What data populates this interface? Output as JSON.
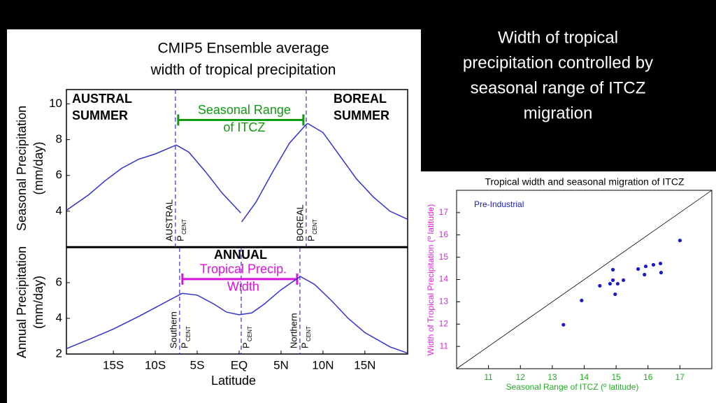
{
  "slide_title": [
    "Width of tropical",
    "precipitation controlled by",
    "seasonal range of ITCZ",
    "migration"
  ],
  "chart_data": [
    {
      "type": "line",
      "title": [
        "CMIP5 Ensemble average",
        "width of tropical precipitation"
      ],
      "ylabel": [
        "Seasonal Precipitation",
        "(mm/day)"
      ],
      "corner_labels": [
        [
          "AUSTRAL",
          "SUMMER"
        ],
        [
          "BOREAL",
          "SUMMER"
        ]
      ],
      "x": [
        -20.6,
        -18,
        -16,
        -14,
        -12,
        -10,
        -8,
        -7.5,
        -6,
        -4,
        -2,
        0.2,
        0.25,
        0.3,
        2,
        4,
        6,
        8,
        8.2,
        10,
        12,
        14,
        16,
        18,
        20.1
      ],
      "series": [
        {
          "color": "#3333cc",
          "values": [
            4.05,
            4.9,
            5.7,
            6.4,
            6.9,
            7.2,
            7.6,
            7.7,
            7.3,
            6.2,
            5.0,
            3.9,
            null,
            3.4,
            4.5,
            6.2,
            7.8,
            8.85,
            8.9,
            8.4,
            7.1,
            5.8,
            4.8,
            4.0,
            3.55
          ]
        }
      ],
      "xlim": [
        -20.6,
        20.1
      ],
      "ylim": [
        2,
        10.8
      ],
      "yticks": [
        4,
        6,
        8,
        10
      ],
      "pcent_lines": [
        {
          "x": -7.6,
          "label": "AUSTRAL",
          "symbol": "P",
          "subscript": "CENT"
        },
        {
          "x": 8.0,
          "label": "BOREAL",
          "symbol": "P",
          "subscript": "CENT"
        }
      ],
      "range_bar": {
        "y": 9.1,
        "label": [
          "Seasonal Range",
          "of ITCZ"
        ],
        "color": "#109a10"
      }
    },
    {
      "type": "line",
      "panel_label": "ANNUAL",
      "ylabel": [
        "Annual Precipitation",
        "(mm/day)"
      ],
      "xlabel": "Latitude",
      "x": [
        -20.6,
        -18,
        -15,
        -12,
        -10,
        -8,
        -6.8,
        -5,
        -3,
        -1.5,
        0,
        1.5,
        3,
        5,
        7.3,
        9,
        11,
        13,
        15,
        18,
        20.1
      ],
      "series": [
        {
          "color": "#3333cc",
          "values": [
            2.3,
            2.8,
            3.4,
            4.1,
            4.6,
            5.1,
            5.4,
            5.3,
            4.8,
            4.35,
            4.2,
            4.3,
            4.8,
            5.6,
            6.35,
            5.9,
            5.0,
            4.0,
            3.2,
            2.4,
            2.05
          ]
        }
      ],
      "xlim": [
        -20.6,
        20.1
      ],
      "ylim": [
        2,
        7.96
      ],
      "yticks": [
        2,
        4,
        6
      ],
      "xticks": [
        {
          "value": -15,
          "label": "15S"
        },
        {
          "value": -10,
          "label": "10S"
        },
        {
          "value": -5,
          "label": "5S"
        },
        {
          "value": 0,
          "label": "EQ"
        },
        {
          "value": 5,
          "label": "5N"
        },
        {
          "value": 10,
          "label": "10N"
        },
        {
          "value": 15,
          "label": "15N"
        }
      ],
      "pcent_lines": [
        {
          "x": -7.1,
          "label": "Southern",
          "symbol": "P",
          "subscript": "CENT"
        },
        {
          "x": 0.25,
          "symbol": "P",
          "subscript": "CENT"
        },
        {
          "x": 7.25,
          "label": "Northern",
          "symbol": "P",
          "subscript": "CENT"
        }
      ],
      "range_bar": {
        "y": 6.2,
        "label": [
          "Tropical Precip.",
          "Width"
        ],
        "color": "#dd11dd"
      }
    },
    {
      "type": "scatter",
      "title": "Tropical width and seasonal migration of ITCZ",
      "xlabel": "Seasonal Range of ITCZ (º latitude)",
      "ylabel": "Width of Tropical Precipitation (º latitude)",
      "xlabel_color": "#22aa22",
      "ylabel_color": "#dd22dd",
      "x": [
        13.35,
        13.92,
        14.49,
        14.81,
        14.9,
        14.9,
        14.97,
        15.05,
        15.23,
        15.69,
        15.89,
        15.93,
        16.17,
        16.39,
        16.41,
        17.0
      ],
      "series": [
        {
          "name": "Pre-Industrial",
          "color": "#1a1acc",
          "values": [
            11.97,
            13.06,
            13.72,
            13.81,
            14.44,
            13.97,
            13.34,
            13.81,
            13.97,
            14.47,
            14.22,
            14.59,
            14.66,
            14.72,
            14.31,
            15.75
          ]
        }
      ],
      "xlim": [
        10,
        18
      ],
      "ylim": [
        10,
        18
      ],
      "xticks": [
        11,
        12,
        13,
        14,
        15,
        16,
        17
      ],
      "yticks": [
        11,
        12,
        13,
        14,
        15,
        16,
        17
      ],
      "one_to_one_line": true
    }
  ]
}
